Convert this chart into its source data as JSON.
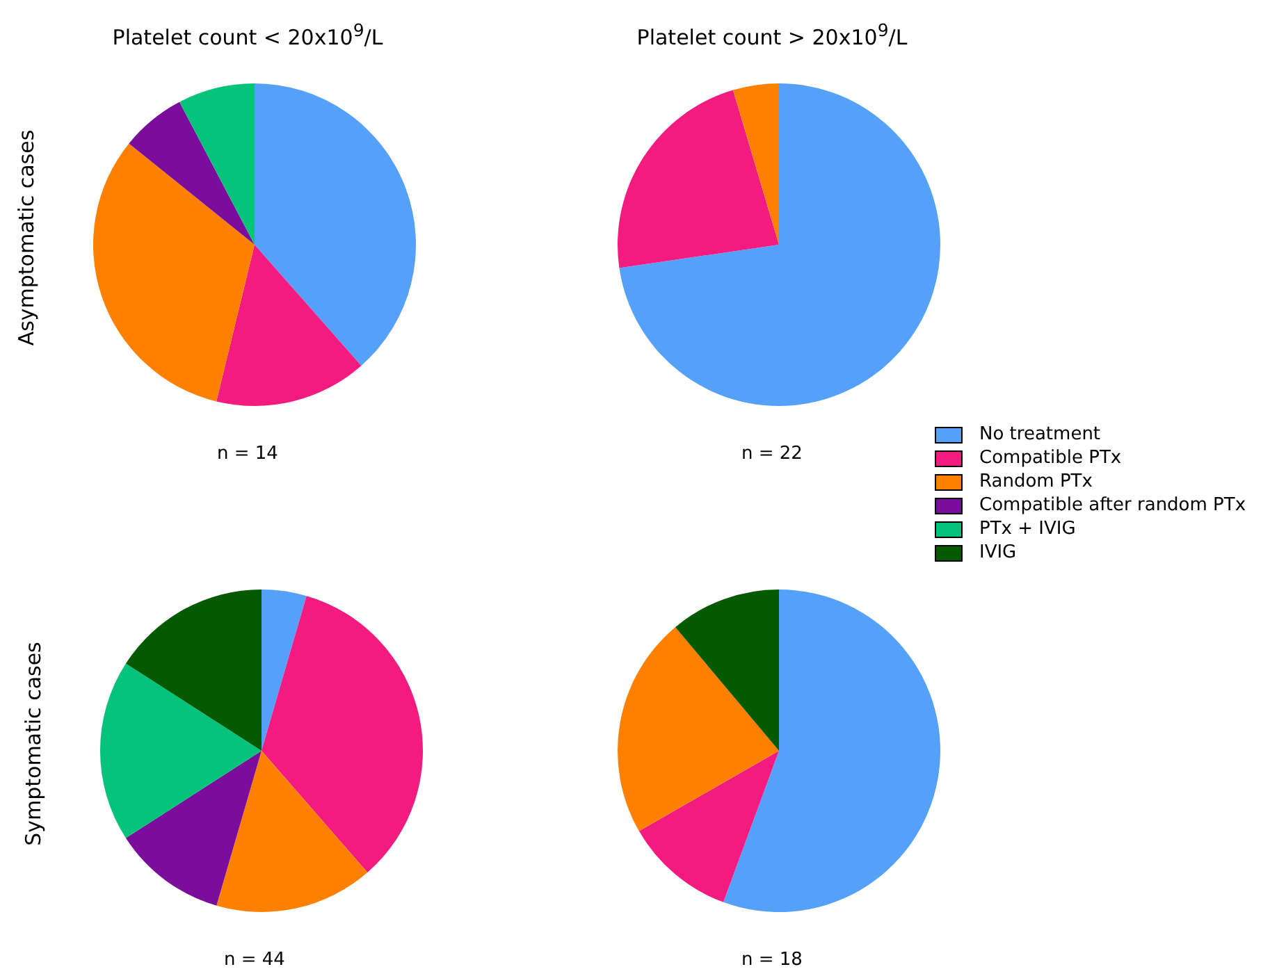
{
  "chart_data": [
    {
      "type": "pie",
      "title": "Platelet count < 20x10$^{9}$/L",
      "ylabel": "Asymptomatic cases",
      "annotations": [
        "n = 14"
      ],
      "categories": [
        null,
        null,
        null,
        null,
        null
      ],
      "values": [
        38.5,
        15.3,
        32.0,
        6.5,
        7.7
      ],
      "colors": [
        "#55a1fa",
        "#f31a80",
        "#fe8000",
        "#7a0d9b",
        "#05c37a"
      ]
    },
    {
      "type": "pie",
      "title": "Platelet count > 20x10$^{9}$/L",
      "annotations": [
        "n = 22"
      ],
      "categories": [
        null,
        null,
        null
      ],
      "values": [
        72.7,
        22.7,
        4.6
      ],
      "colors": [
        "#55a1fa",
        "#f31a80",
        "#fe8000"
      ]
    },
    {
      "type": "pie",
      "ylabel": "Symptomatic cases",
      "annotations": [
        "n = 44"
      ],
      "legend": "right",
      "categories": [
        "No treatment",
        "Compatible PTx",
        "Random PTx",
        "Compatible after random PTx",
        "PTx + IVIG",
        "IVIG"
      ],
      "values": [
        4.5,
        34.1,
        15.9,
        11.4,
        18.2,
        15.9
      ],
      "colors": [
        "#55a1fa",
        "#f31a80",
        "#fe8000",
        "#7a0d9b",
        "#05c37a",
        "#055a00"
      ]
    },
    {
      "type": "pie",
      "annotations": [
        "n = 18"
      ],
      "categories": [
        null,
        null,
        null,
        null
      ],
      "values": [
        55.6,
        11.1,
        22.2,
        11.1
      ],
      "colors": [
        "#55a1fa",
        "#f31a80",
        "#fe8000",
        "#055a00"
      ]
    }
  ]
}
